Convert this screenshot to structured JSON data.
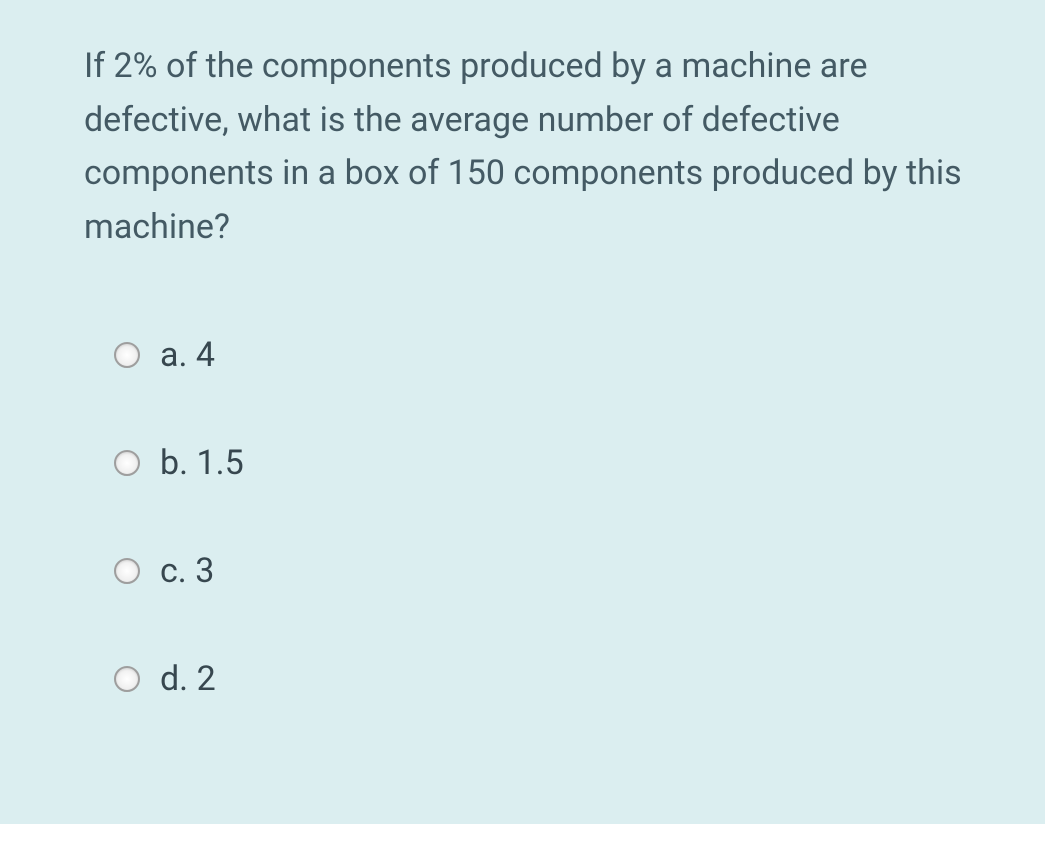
{
  "quiz": {
    "background_color": "#dbeef0",
    "question_text": "If 2% of the components produced by a machine are defective, what is the average number of defective components in a box of 150 components produced by this machine?",
    "question_text_color": "#445a64",
    "question_fontsize": 34,
    "answers": [
      {
        "id": "a",
        "label": "a. 4"
      },
      {
        "id": "b",
        "label": "b. 1.5"
      },
      {
        "id": "c",
        "label": "c. 3"
      },
      {
        "id": "d",
        "label": "d. 2"
      }
    ],
    "answer_text_color": "#37474f",
    "answer_fontsize": 34,
    "radio_border_color": "#9e9e9e"
  }
}
